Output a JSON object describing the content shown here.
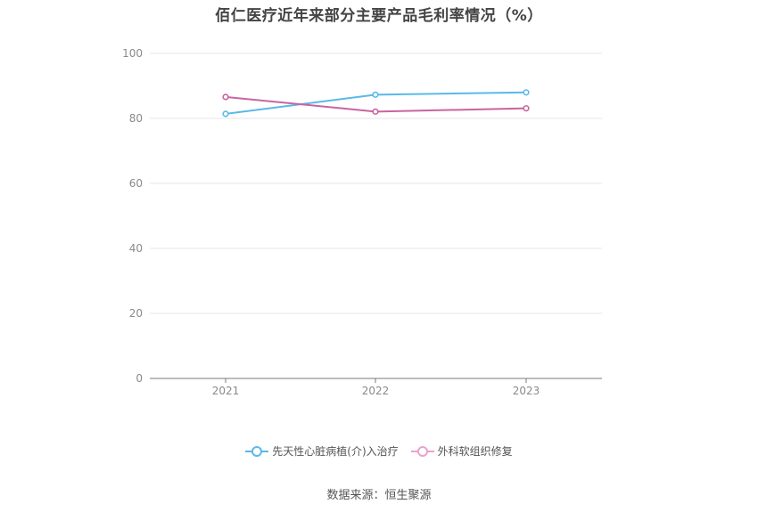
{
  "chart_data": {
    "type": "line",
    "title": "佰仁医疗近年来部分主要产品毛利率情况（%）",
    "x": [
      "2021",
      "2022",
      "2023"
    ],
    "ylim": [
      0,
      100
    ],
    "yticks": [
      0,
      20,
      40,
      60,
      80,
      100
    ],
    "grid": true,
    "legend_position": "bottom",
    "series": [
      {
        "name": "先天性心脏病植(介)入治疗",
        "values": [
          81.4,
          87.3,
          88.0
        ],
        "color": "#5bb8ea"
      },
      {
        "name": "外科软组织修复",
        "values": [
          86.6,
          82.1,
          83.1
        ],
        "color": "#c9649f"
      }
    ]
  },
  "source": "数据来源：恒生聚源"
}
